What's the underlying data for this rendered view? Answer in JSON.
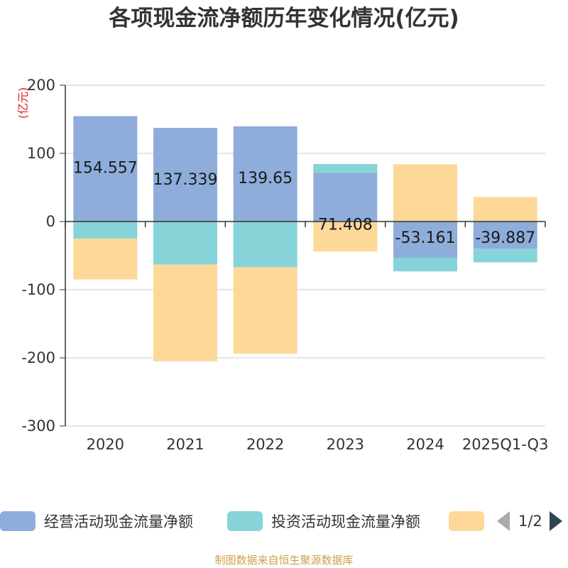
{
  "chart_data": {
    "type": "bar",
    "stacked": true,
    "title": "各项现金流净额历年变化情况(亿元)",
    "ylabel": "(亿元)",
    "ylim": [
      -300,
      200
    ],
    "yticks": [
      200,
      100,
      0,
      -100,
      -200,
      -300
    ],
    "categories": [
      "2020",
      "2021",
      "2022",
      "2023",
      "2024",
      "2025Q1-Q3"
    ],
    "series": [
      {
        "name": "经营活动现金流量净额",
        "color": "#8eaddb",
        "values": [
          154.557,
          137.339,
          139.65,
          71.408,
          -53.161,
          -39.887
        ]
      },
      {
        "name": "投资活动现金流量净额",
        "color": "#86d4d8",
        "values": [
          -25,
          -63,
          -67,
          13,
          -20,
          -20
        ]
      },
      {
        "name": "",
        "color": "#fdd899",
        "values": [
          -60,
          -142,
          -127,
          -44,
          84,
          36
        ]
      }
    ],
    "data_labels": [
      "154.557",
      "137.339",
      "139.65",
      "71.408",
      "-53.161",
      "-39.887"
    ]
  },
  "legend": {
    "items": [
      {
        "label": "经营活动现金流量净额",
        "color": "#8eaddb"
      },
      {
        "label": "投资活动现金流量净额",
        "color": "#86d4d8"
      },
      {
        "label": "",
        "color": "#fdd899"
      }
    ],
    "page_indicator": "1/2"
  },
  "source": "制图数据来自恒生聚源数据库"
}
